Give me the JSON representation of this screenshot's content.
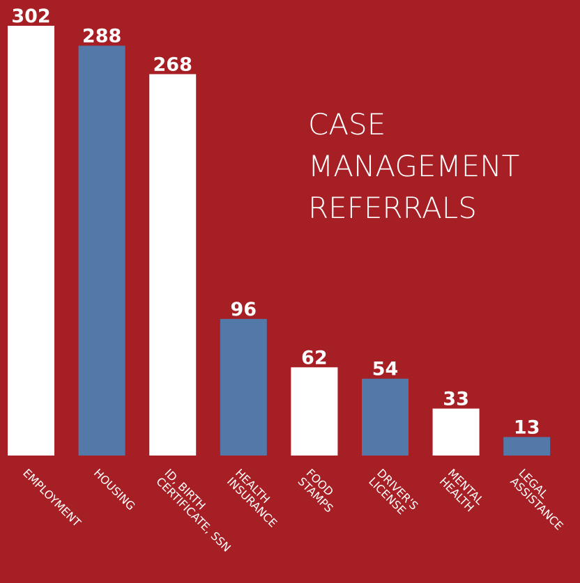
{
  "chart_data": {
    "type": "bar",
    "title": "CASE\nMANAGEMENT\nREFERRALS",
    "categories": [
      "EMPLOYMENT",
      "HOUSING",
      "ID, BIRTH\nCERTIFICATE, SSN",
      "HEALTH\nINSURANCE",
      "FOOD\nSTAMPS",
      "DRIVER'S\nLICENSE",
      "MENTAL\nHEALTH",
      "LEGAL\nASSISTANCE"
    ],
    "values": [
      302,
      288,
      268,
      96,
      62,
      54,
      33,
      13
    ],
    "colors": [
      "#ffffff",
      "#5279a8",
      "#ffffff",
      "#5279a8",
      "#ffffff",
      "#5279a8",
      "#ffffff",
      "#5279a8"
    ],
    "background": "#a61f24"
  }
}
